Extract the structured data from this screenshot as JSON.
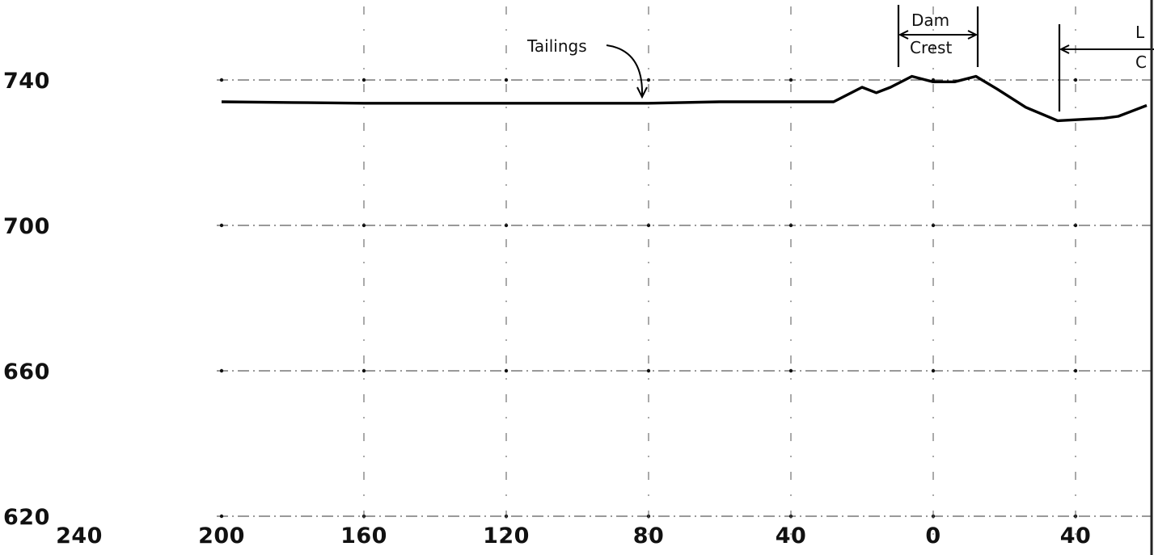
{
  "chart_data": {
    "type": "line",
    "title": "",
    "xlabel": "",
    "ylabel": "",
    "xlim": [
      240,
      -60
    ],
    "ylim": [
      620,
      750
    ],
    "x_ticks": [
      {
        "value": 240,
        "label": "240"
      },
      {
        "value": 200,
        "label": "200"
      },
      {
        "value": 160,
        "label": "160"
      },
      {
        "value": 120,
        "label": "120"
      },
      {
        "value": 80,
        "label": "80"
      },
      {
        "value": 40,
        "label": "40"
      },
      {
        "value": 0,
        "label": "0"
      },
      {
        "value": -40,
        "label": "40"
      }
    ],
    "y_ticks": [
      {
        "value": 740,
        "label": "740"
      },
      {
        "value": 700,
        "label": "700"
      },
      {
        "value": 660,
        "label": "660"
      },
      {
        "value": 620,
        "label": "620"
      }
    ],
    "grid": true,
    "series": [
      {
        "x": [
          200,
          180,
          160,
          140,
          120,
          100,
          80,
          60,
          40,
          28,
          20,
          16,
          12,
          6,
          0,
          -6,
          -12,
          -18,
          -26,
          -35,
          -48,
          -52,
          -60
        ],
        "y": [
          734,
          733.8,
          733.6,
          733.6,
          733.6,
          733.6,
          733.6,
          734,
          734,
          734,
          738,
          736.5,
          738,
          741,
          739.5,
          739.5,
          741,
          737.5,
          732.5,
          728.8,
          729.5,
          730,
          733
        ]
      }
    ],
    "annotations": {
      "tailings": "Tailings",
      "dam": "Dam",
      "crest": "Crest",
      "cutoff_top": "L",
      "cutoff_bottom": "C"
    }
  }
}
